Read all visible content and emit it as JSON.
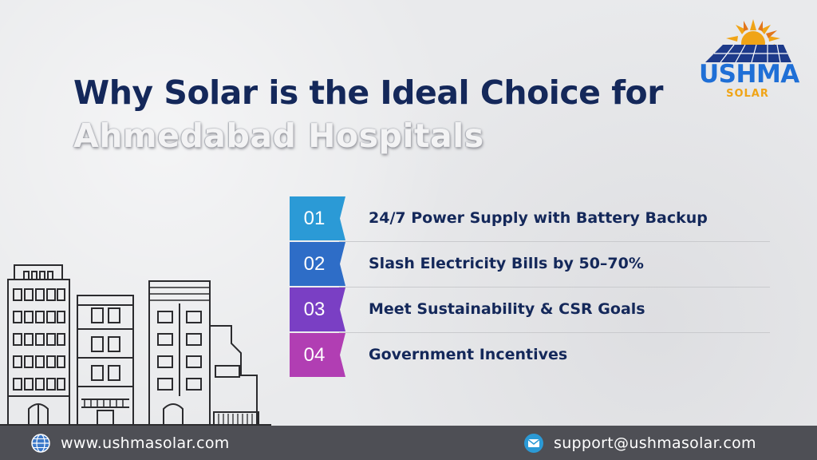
{
  "title": {
    "line1": "Why Solar is the Ideal Choice for",
    "line2": "Ahmedabad Hospitals"
  },
  "logo": {
    "brand": "USHMA",
    "sub": "SOLAR",
    "icon": "sun-solar-panel-icon",
    "colors": {
      "brand": "#1f6fd6",
      "sun": "#f0a416",
      "panel": "#1d3a8a"
    }
  },
  "items": [
    {
      "number": "01",
      "text": "24/7 Power Supply with Battery Backup",
      "color": "#2b9ad6"
    },
    {
      "number": "02",
      "text": "Slash Electricity Bills by 50–70%",
      "color": "#2e6dc7"
    },
    {
      "number": "03",
      "text": "Meet Sustainability & CSR Goals",
      "color": "#7a3fc4"
    },
    {
      "number": "04",
      "text": "Government Incentives",
      "color": "#b13eb3"
    }
  ],
  "illustration": {
    "icon": "city-buildings-illustration"
  },
  "footer": {
    "website": "www.ushmasolar.com",
    "website_icon": "globe-icon",
    "email": "support@ushmasolar.com",
    "email_icon": "mail-icon",
    "background": "#4e4f55"
  }
}
